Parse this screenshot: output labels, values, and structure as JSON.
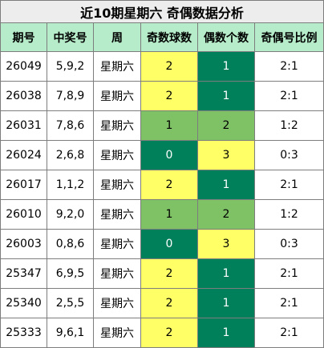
{
  "title": "近10期星期六 奇偶数据分析",
  "headers": [
    "期号",
    "中奖号",
    "周",
    "奇数球数",
    "偶数个数",
    "奇偶号比例"
  ],
  "rows": [
    {
      "issue": "26049",
      "numbers": "5,9,2",
      "weekday": "星期六",
      "odd": "2",
      "even": "1",
      "ratio": "2:1"
    },
    {
      "issue": "26038",
      "numbers": "7,8,9",
      "weekday": "星期六",
      "odd": "2",
      "even": "1",
      "ratio": "2:1"
    },
    {
      "issue": "26031",
      "numbers": "7,8,6",
      "weekday": "星期六",
      "odd": "1",
      "even": "2",
      "ratio": "1:2"
    },
    {
      "issue": "26024",
      "numbers": "2,6,8",
      "weekday": "星期六",
      "odd": "0",
      "even": "3",
      "ratio": "0:3"
    },
    {
      "issue": "26017",
      "numbers": "1,1,2",
      "weekday": "星期六",
      "odd": "2",
      "even": "1",
      "ratio": "2:1"
    },
    {
      "issue": "26010",
      "numbers": "9,2,0",
      "weekday": "星期六",
      "odd": "1",
      "even": "2",
      "ratio": "1:2"
    },
    {
      "issue": "26003",
      "numbers": "0,8,6",
      "weekday": "星期六",
      "odd": "0",
      "even": "3",
      "ratio": "0:3"
    },
    {
      "issue": "25347",
      "numbers": "6,9,5",
      "weekday": "星期六",
      "odd": "2",
      "even": "1",
      "ratio": "2:1"
    },
    {
      "issue": "25340",
      "numbers": "2,5,5",
      "weekday": "星期六",
      "odd": "2",
      "even": "1",
      "ratio": "2:1"
    },
    {
      "issue": "25333",
      "numbers": "9,6,1",
      "weekday": "星期六",
      "odd": "2",
      "even": "1",
      "ratio": "2:1"
    }
  ],
  "colors": {
    "title_bg": "#ededed",
    "header_bg": "#b6ecc9",
    "yellow": "#ffff66",
    "light_green": "#7fc266",
    "dark_green": "#00805a",
    "border": "#7d7d7d"
  }
}
